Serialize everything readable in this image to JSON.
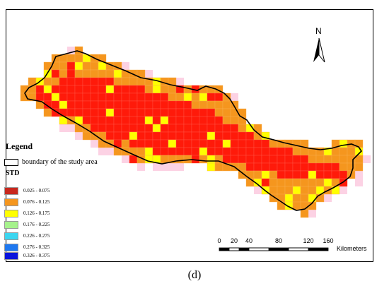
{
  "legend": {
    "title": "Legend",
    "boundary_label": "boundary of the study area",
    "std_title": "STD",
    "classes": [
      {
        "label": "0.025 - 0.075",
        "color": "#c8281e"
      },
      {
        "label": "0.076 - 0.125",
        "color": "#f5961e"
      },
      {
        "label": "0.126 - 0.175",
        "color": "#ffff00"
      },
      {
        "label": "0.176 - 0.225",
        "color": "#a6f28c"
      },
      {
        "label": "0.226 - 0.275",
        "color": "#3cd6f0"
      },
      {
        "label": "0.276 - 0.325",
        "color": "#1e78f0"
      },
      {
        "label": "0.326 - 0.375",
        "color": "#0a14dc"
      }
    ]
  },
  "map_colors": {
    "core": "#ff1a0a",
    "edge": "#f5961e",
    "fringe": "#ffff00",
    "halo": "#fcd2e4"
  },
  "north_label": "N",
  "scale": {
    "ticks": [
      "0",
      "20",
      "40",
      "80",
      "120",
      "160"
    ],
    "units": "Kilometers"
  },
  "panel_label": "(d)"
}
